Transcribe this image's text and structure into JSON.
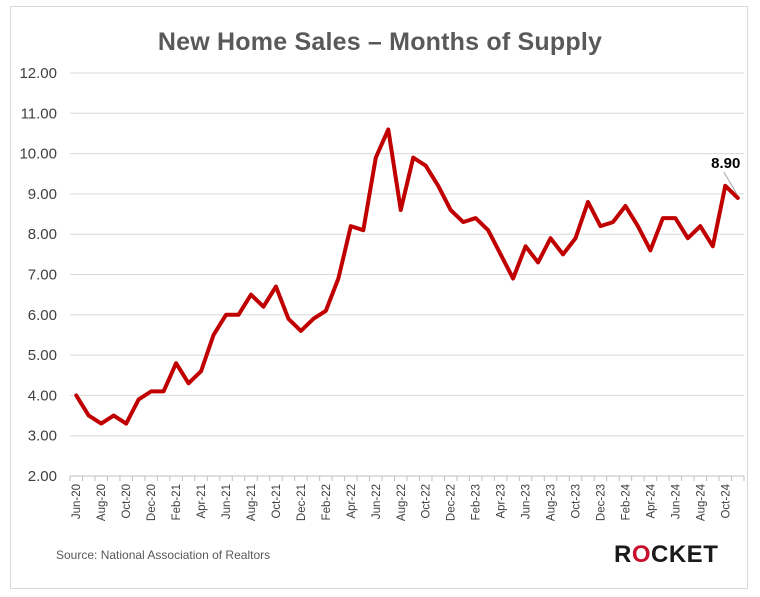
{
  "chart_data": {
    "type": "line",
    "title": "New Home Sales – Months of Supply",
    "xlabel": "",
    "ylabel": "",
    "ylim": [
      2.0,
      12.0
    ],
    "yticks": [
      "2.00",
      "3.00",
      "4.00",
      "5.00",
      "6.00",
      "7.00",
      "8.00",
      "9.00",
      "10.00",
      "11.00",
      "12.00"
    ],
    "grid": "horizontal",
    "line_color": "#c00000",
    "x_tick_labels": [
      "Jun-20",
      "Aug-20",
      "Oct-20",
      "Dec-20",
      "Feb-21",
      "Apr-21",
      "Jun-21",
      "Aug-21",
      "Oct-21",
      "Dec-21",
      "Feb-22",
      "Apr-22",
      "Jun-22",
      "Aug-22",
      "Oct-22",
      "Dec-22",
      "Feb-23",
      "Apr-23",
      "Jun-23",
      "Aug-23",
      "Oct-23",
      "Dec-23",
      "Feb-24",
      "Apr-24",
      "Jun-24",
      "Aug-24",
      "Oct-24"
    ],
    "series": [
      {
        "values": [
          4.0,
          3.5,
          3.3,
          3.5,
          3.3,
          3.9,
          4.1,
          4.1,
          4.8,
          4.3,
          4.6,
          5.5,
          6.0,
          6.0,
          6.5,
          6.2,
          6.7,
          5.9,
          5.6,
          5.9,
          6.1,
          6.9,
          8.2,
          8.1,
          9.9,
          10.6,
          8.6,
          9.9,
          9.7,
          9.2,
          8.6,
          8.3,
          8.4,
          8.1,
          7.5,
          6.9,
          7.7,
          7.3,
          7.9,
          7.5,
          7.9,
          8.8,
          8.2,
          8.3,
          8.7,
          8.2,
          7.6,
          8.4,
          8.4,
          7.9,
          8.2,
          7.7,
          9.2,
          8.9
        ]
      }
    ],
    "annotations": [
      {
        "text": "8.90",
        "index": 53
      }
    ]
  },
  "source": "Source: National Association of Realtors",
  "logo": {
    "before": "R",
    "o": "O",
    "after": "CKET",
    "accent": "#c8102e"
  }
}
